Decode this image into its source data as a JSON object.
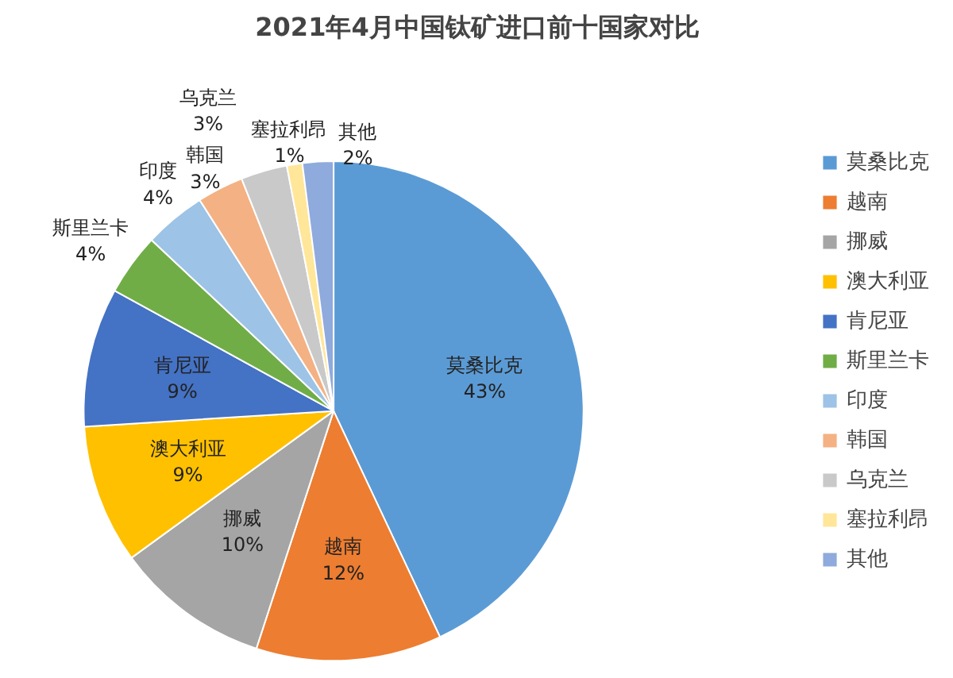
{
  "chart_data": {
    "type": "pie",
    "title": "2021年4月中国钛矿进口前十国家对比",
    "categories": [
      "莫桑比克",
      "越南",
      "挪威",
      "澳大利亚",
      "肯尼亚",
      "斯里兰卡",
      "印度",
      "韩国",
      "乌克兰",
      "塞拉利昂",
      "其他"
    ],
    "values": [
      43,
      12,
      10,
      9,
      9,
      4,
      4,
      3,
      3,
      1,
      2
    ],
    "value_labels": [
      "43%",
      "12%",
      "10%",
      "9%",
      "9%",
      "4%",
      "4%",
      "3%",
      "3%",
      "1%",
      "2%"
    ],
    "colors": [
      "#5b9bd5",
      "#ed7d31",
      "#a5a5a5",
      "#ffc000",
      "#4472c4",
      "#70ad47",
      "#9dc3e6",
      "#f4b183",
      "#c9c9c9",
      "#ffe699",
      "#8faadc"
    ],
    "legend": "right"
  }
}
